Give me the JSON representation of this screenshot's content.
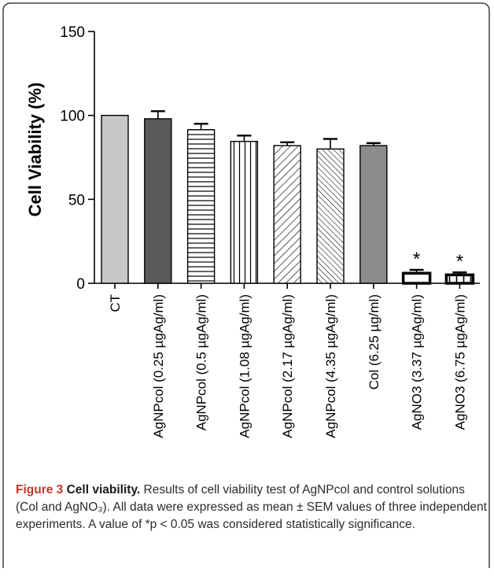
{
  "chart_data": {
    "type": "bar",
    "ylabel": "Cell Viability (%)",
    "xlabel": "",
    "ylim": [
      0,
      150
    ],
    "yticks": [
      "0",
      "50",
      "100",
      "150"
    ],
    "categories": [
      "CT",
      "AgNPcol (0.25 µgAg/ml)",
      "AgNPcol (0.5 µgAg/ml)",
      "AgNPcol (1.08 µgAg/ml)",
      "AgNPcol (2.17 µgAg/ml)",
      "AgNPcol (4.35 µgAg/ml)",
      "Col (6.25 µg/ml)",
      "AgNO3 (3.37 µgAg/ml)",
      "AgNO3 (6.75 µgAg/ml)"
    ],
    "values": [
      100,
      98,
      91.5,
      84.5,
      82,
      80,
      82,
      6,
      5
    ],
    "errors": [
      0,
      4.5,
      3.5,
      3.5,
      2,
      6,
      1.5,
      2,
      1.5
    ],
    "significance": [
      "",
      "",
      "",
      "",
      "",
      "",
      "",
      "*",
      "*"
    ],
    "fills": [
      "light-gray",
      "dark-gray",
      "horizontal-lines",
      "vertical-lines",
      "diagonal-lines",
      "diagonal-lines-dense",
      "mid-gray",
      "white",
      "vertical-lines-wide"
    ],
    "grid": false,
    "legend": "none"
  },
  "caption": {
    "label": "Figure 3",
    "title": "Cell viability.",
    "text": "Results of cell viability test of AgNPcol and control solutions (Col and AgNO₃). All data were expressed as mean ± SEM values of three independent experiments. A value of *p < 0.05 was considered statistically significance."
  },
  "colors": {
    "axis": "#000000",
    "caption_label": "#c0392b"
  }
}
